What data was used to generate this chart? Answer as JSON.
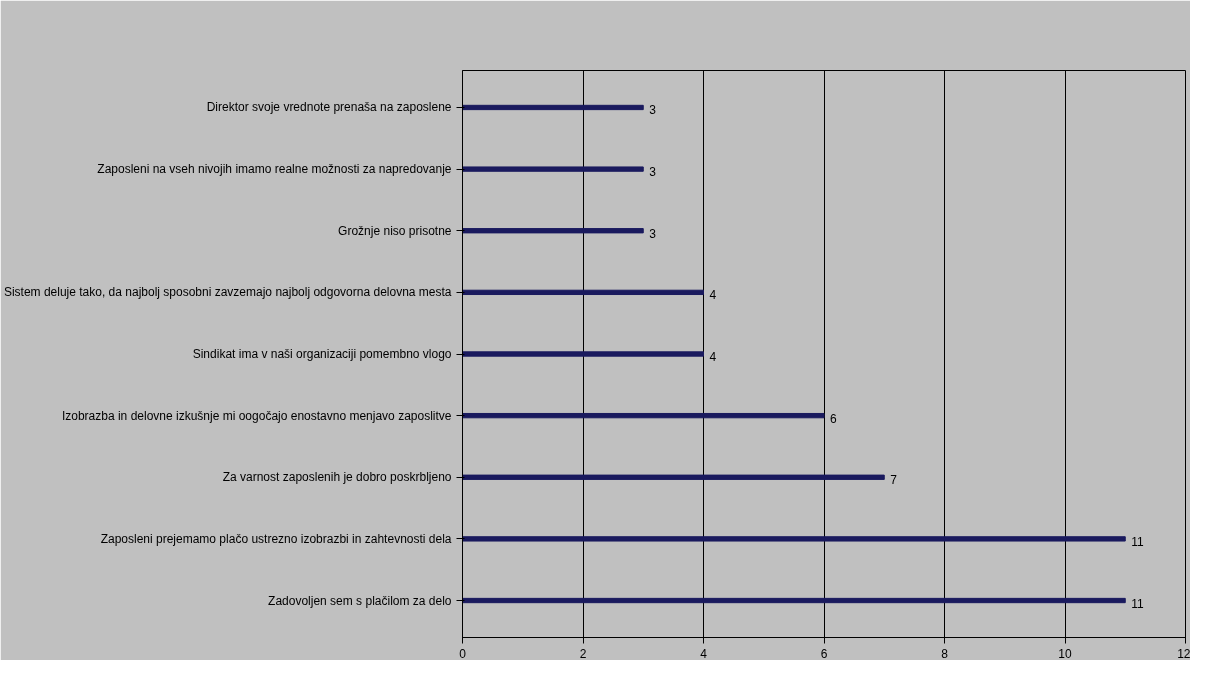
{
  "chart_data": {
    "type": "bar",
    "orientation": "horizontal",
    "categories": [
      "Direktor svoje vrednote prenaša na zaposlene",
      "Zaposleni na vseh nivojih imamo realne možnosti za napredovanje",
      "Grožnje niso prisotne",
      "Sistem deluje tako, da najbolj sposobni zavzemajo najbolj odgovorna delovna mesta",
      "Sindikat ima v naši organizaciji pomembno vlogo",
      "Izobrazba in delovne izkušnje mi oogočajo enostavno menjavo zaposlitve",
      "Za varnost zaposlenih je dobro poskrbljeno",
      "Zaposleni prejemamo plačo ustrezno izobrazbi in zahtevnosti dela",
      "Zadovoljen sem s plačilom za delo"
    ],
    "values": [
      3,
      3,
      3,
      4,
      4,
      6,
      7,
      11,
      11
    ],
    "color": "#1a1a5e",
    "xlim": [
      0,
      12
    ],
    "xticks": [
      0,
      2,
      4,
      6,
      8,
      10,
      12
    ],
    "grid": "x",
    "data_labels": true
  }
}
